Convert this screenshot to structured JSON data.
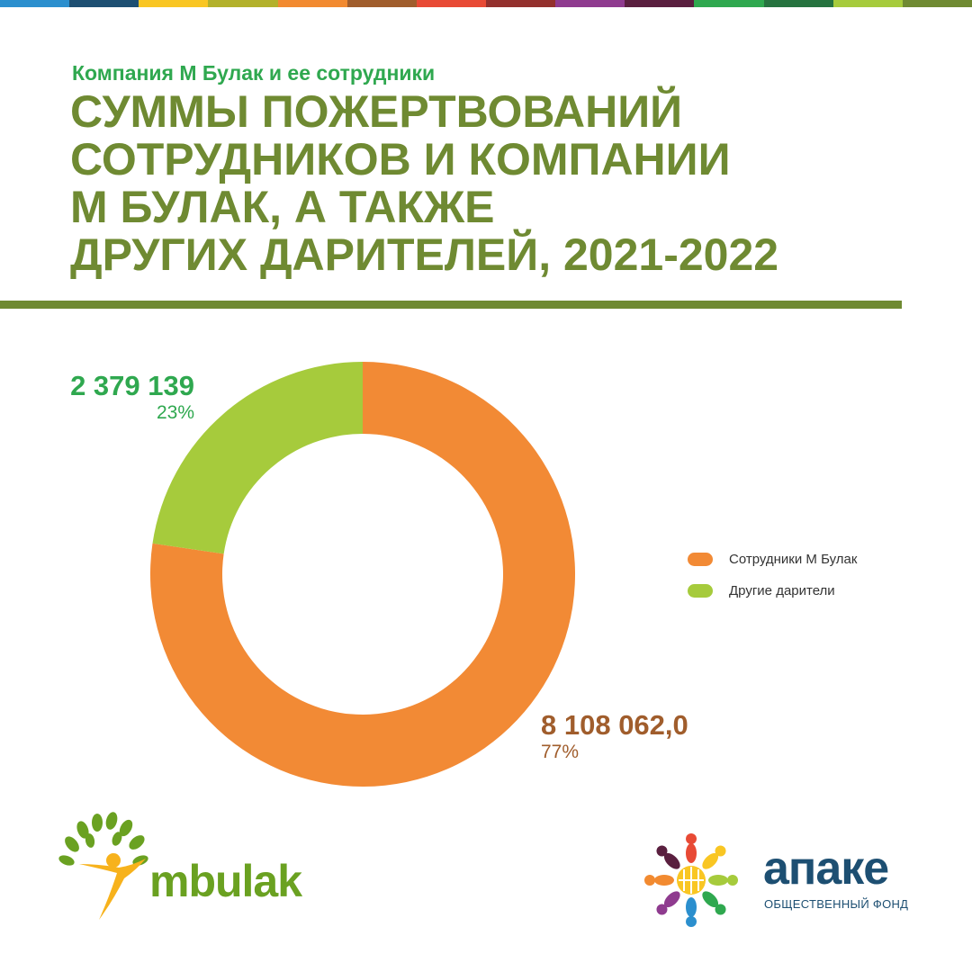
{
  "stripes": [
    "#2b8fce",
    "#1d4f72",
    "#f9c623",
    "#b3b12b",
    "#f28a30",
    "#a05d2c",
    "#e84a35",
    "#93302d",
    "#8f3b8f",
    "#5a1f3f",
    "#2fa84f",
    "#26733f",
    "#a6cb3c",
    "#6f8a32"
  ],
  "header": {
    "subtitle": "Компания М Булак и ее сотрудники",
    "title_lines": [
      "СУММЫ ПОЖЕРТВОВАНИЙ",
      "СОТРУДНИКОВ И КОМПАНИИ",
      "М БУЛАК, А ТАКЖЕ",
      "ДРУГИХ ДАРИТЕЛЕЙ, 2021-2022"
    ]
  },
  "chart_data": {
    "type": "pie",
    "donut": true,
    "title": "",
    "legend_position": "right",
    "slices": [
      {
        "name": "Сотрудники М Булак",
        "value": 8108062.0,
        "value_label": "8 108 062,0",
        "percent_label": "77%",
        "color": "#f28a35",
        "label_color": "#a05d2c"
      },
      {
        "name": "Другие дарители",
        "value": 2379139,
        "value_label": "2 379 139",
        "percent_label": "23%",
        "color": "#a6cb3c",
        "label_color": "#2fa84f"
      }
    ]
  },
  "logos": {
    "left_text": "mbulak",
    "right_text": "апаке",
    "right_subtext": "ОБЩЕСТВЕННЫЙ ФОНД",
    "right_icon_colors": [
      "#e84a35",
      "#f9c623",
      "#a6cb3c",
      "#2fa84f",
      "#2b8fce",
      "#8f3b8f",
      "#f28a30",
      "#5a1f3f"
    ]
  }
}
